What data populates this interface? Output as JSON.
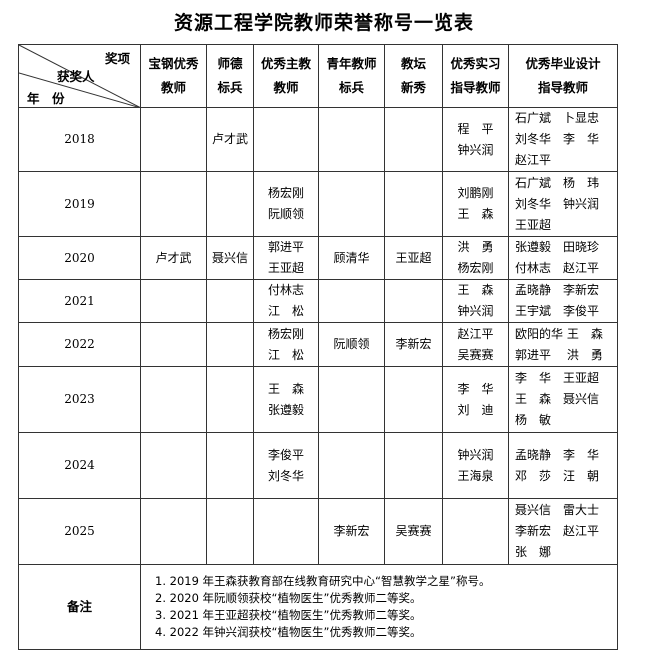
{
  "title": "资源工程学院教师荣誉称号一览表",
  "corner": {
    "award": "奖项",
    "person": "获奖人",
    "year": "年　份"
  },
  "headers": [
    [
      "宝钢优秀",
      "教师"
    ],
    [
      "师德",
      "标兵"
    ],
    [
      "优秀主教",
      "教师"
    ],
    [
      "青年教师",
      "标兵"
    ],
    [
      "教坛",
      "新秀"
    ],
    [
      "优秀实习",
      "指导教师"
    ],
    [
      "优秀毕业设计",
      "指导教师"
    ]
  ],
  "rows": [
    {
      "year": "2018",
      "cells": [
        [],
        [
          "卢才武"
        ],
        [],
        [],
        [],
        [
          "程　平",
          "钟兴润"
        ],
        [
          "石广斌　卜显忠",
          "刘冬华　李　华",
          "赵江平"
        ]
      ]
    },
    {
      "year": "2019",
      "cells": [
        [],
        [],
        [
          "杨宏刚",
          "阮顺领"
        ],
        [],
        [],
        [
          "刘鹏刚",
          "王　森"
        ],
        [
          "石广斌　杨　玮",
          "刘冬华　钟兴润",
          "王亚超"
        ]
      ]
    },
    {
      "year": "2020",
      "cells": [
        [
          "卢才武"
        ],
        [
          "聂兴信"
        ],
        [
          "郭进平",
          "王亚超"
        ],
        [
          "顾清华"
        ],
        [
          "王亚超"
        ],
        [
          "洪　勇",
          "杨宏刚"
        ],
        [
          "张遵毅　田晓珍",
          "付林志　赵江平"
        ]
      ]
    },
    {
      "year": "2021",
      "cells": [
        [],
        [],
        [
          "付林志",
          "江　松"
        ],
        [],
        [],
        [
          "王　森",
          "钟兴润"
        ],
        [
          "孟晓静　李新宏",
          "王宇斌　李俊平"
        ]
      ]
    },
    {
      "year": "2022",
      "cells": [
        [],
        [],
        [
          "杨宏刚",
          "江　松"
        ],
        [
          "阮顺领"
        ],
        [
          "李新宏"
        ],
        [
          "赵江平",
          "吴赛赛"
        ],
        [
          "欧阳的华 王　森",
          "郭进平　 洪　勇"
        ]
      ]
    },
    {
      "year": "2023",
      "cells": [
        [],
        [],
        [
          "王　森",
          "张遵毅"
        ],
        [],
        [],
        [
          "李　华",
          "刘　迪"
        ],
        [
          "李　华　王亚超",
          "王　森　聂兴信",
          "杨　敏"
        ]
      ]
    },
    {
      "year": "2024",
      "cells": [
        [],
        [],
        [
          "李俊平",
          "刘冬华"
        ],
        [],
        [],
        [
          "钟兴润",
          "王海泉"
        ],
        [
          "孟晓静　李　华",
          "邓　莎　汪　朝"
        ]
      ]
    },
    {
      "year": "2025",
      "cells": [
        [],
        [],
        [],
        [
          "李新宏"
        ],
        [
          "吴赛赛"
        ],
        [],
        [
          "聂兴信　雷大士",
          "李新宏　赵江平",
          "张　娜"
        ]
      ]
    }
  ],
  "notes": {
    "label": "备注",
    "items": [
      "1. 2019 年王森获教育部在线教育研究中心“智慧教学之星”称号。",
      "2. 2020 年阮顺领获校“植物医生”优秀教师二等奖。",
      "3. 2021 年王亚超获校“植物医生”优秀教师二等奖。",
      "4. 2022 年钟兴润获校“植物医生”优秀教师二等奖。"
    ]
  }
}
